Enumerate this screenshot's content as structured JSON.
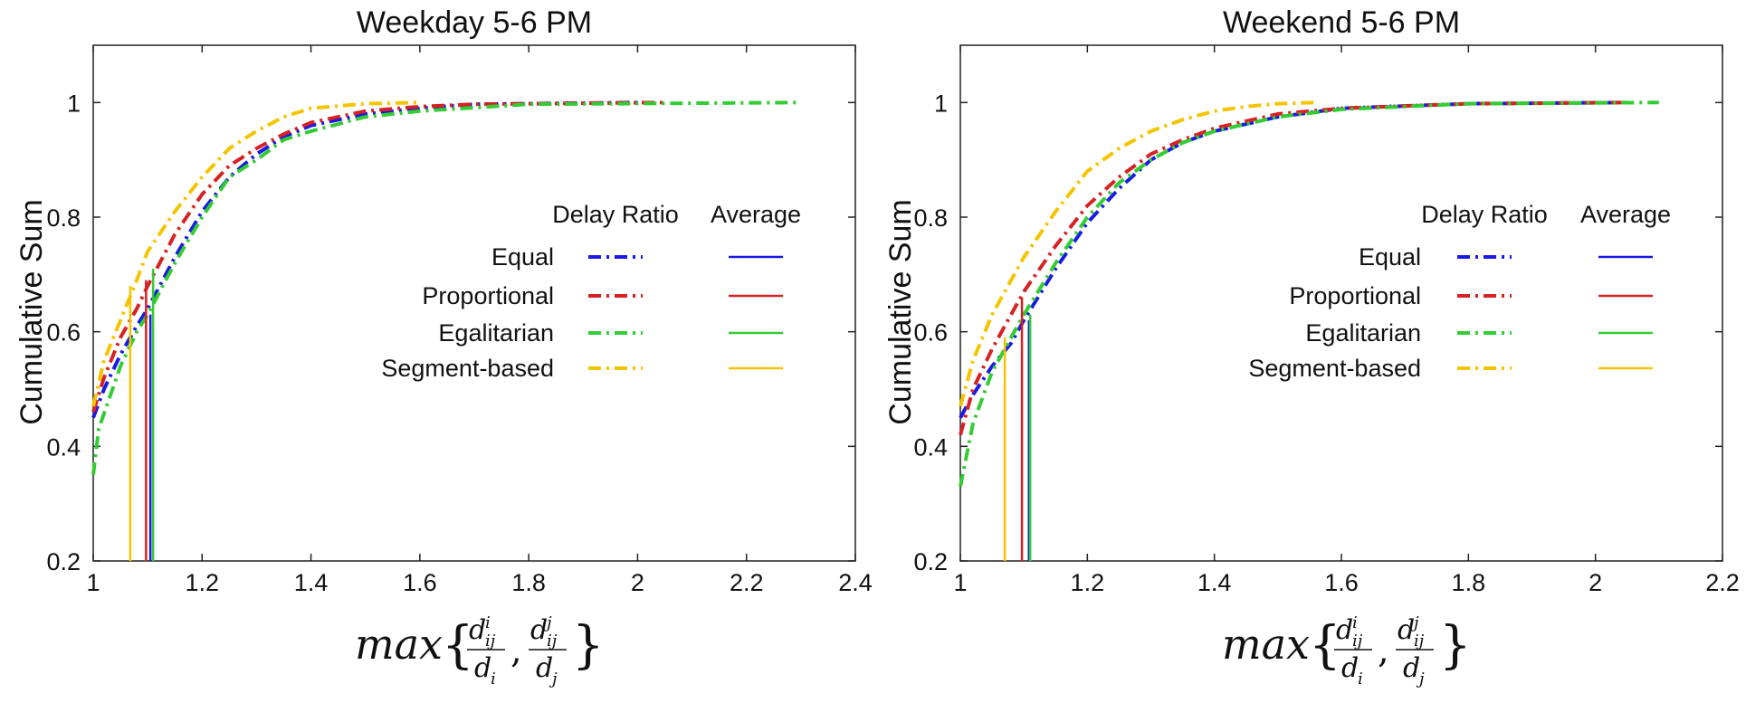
{
  "colors": {
    "Equal": "#1a1ae6",
    "Proportional": "#d62222",
    "Egalitarian": "#33cc33",
    "Segment-based": "#f5c400"
  },
  "legend": {
    "col1_header": "Delay Ratio",
    "col2_header": "Average",
    "entries": [
      "Equal",
      "Proportional",
      "Egalitarian",
      "Segment-based"
    ]
  },
  "xlabel_parts": {
    "func": "max",
    "num_i": "d",
    "sup_i": "i",
    "sub_ij": "ij",
    "den_i": "d",
    "den_sub_i": "i",
    "sup_j": "j",
    "den_sub_j": "j"
  },
  "chart_data": [
    {
      "type": "line",
      "title": "Weekday 5-6 PM",
      "ylabel": "Cumulative Sum",
      "xlabel": "max{d_ij^i/d_i, d_ij^j/d_j}",
      "xlim": [
        1,
        2.4
      ],
      "ylim": [
        0.2,
        1.1
      ],
      "xticks": [
        "1",
        "1.2",
        "1.4",
        "1.6",
        "1.8",
        "2",
        "2.2",
        "2.4"
      ],
      "yticks": [
        "0.2",
        "0.4",
        "0.6",
        "0.8",
        "1"
      ],
      "legend_position": "center-right",
      "series": [
        {
          "name": "Equal",
          "style": "dash-dot",
          "x": [
            1.0,
            1.02,
            1.05,
            1.08,
            1.1,
            1.15,
            1.2,
            1.25,
            1.3,
            1.35,
            1.4,
            1.5,
            1.6,
            1.7,
            2.0
          ],
          "y": [
            0.45,
            0.5,
            0.56,
            0.61,
            0.64,
            0.73,
            0.81,
            0.87,
            0.91,
            0.94,
            0.96,
            0.98,
            0.99,
            0.997,
            1.0
          ]
        },
        {
          "name": "Proportional",
          "style": "dash-dot",
          "x": [
            1.0,
            1.02,
            1.05,
            1.08,
            1.1,
            1.15,
            1.2,
            1.25,
            1.3,
            1.35,
            1.4,
            1.5,
            1.6,
            1.7,
            2.05
          ],
          "y": [
            0.46,
            0.52,
            0.59,
            0.64,
            0.68,
            0.77,
            0.84,
            0.89,
            0.92,
            0.945,
            0.965,
            0.985,
            0.993,
            0.997,
            1.0
          ]
        },
        {
          "name": "Egalitarian",
          "style": "dash-dot",
          "x": [
            1.0,
            1.01,
            1.05,
            1.08,
            1.1,
            1.15,
            1.2,
            1.25,
            1.3,
            1.35,
            1.4,
            1.5,
            1.6,
            1.8,
            2.3
          ],
          "y": [
            0.35,
            0.43,
            0.54,
            0.6,
            0.63,
            0.72,
            0.8,
            0.87,
            0.9,
            0.935,
            0.95,
            0.975,
            0.985,
            0.997,
            1.0
          ]
        },
        {
          "name": "Segment-based",
          "style": "dash-dot",
          "x": [
            1.0,
            1.02,
            1.05,
            1.08,
            1.1,
            1.15,
            1.2,
            1.25,
            1.3,
            1.35,
            1.4,
            1.5,
            1.6
          ],
          "y": [
            0.47,
            0.55,
            0.62,
            0.69,
            0.74,
            0.81,
            0.87,
            0.92,
            0.95,
            0.975,
            0.99,
            0.998,
            1.0
          ]
        }
      ],
      "averages": [
        {
          "name": "Equal",
          "x": 1.105,
          "y": 0.63
        },
        {
          "name": "Proportional",
          "x": 1.097,
          "y": 0.69
        },
        {
          "name": "Egalitarian",
          "x": 1.11,
          "y": 0.71
        },
        {
          "name": "Segment-based",
          "x": 1.068,
          "y": 0.68
        }
      ]
    },
    {
      "type": "line",
      "title": "Weekend 5-6 PM",
      "ylabel": "Cumulative Sum",
      "xlabel": "max{d_ij^i/d_i, d_ij^j/d_j}",
      "xlim": [
        1,
        2.2
      ],
      "ylim": [
        0.2,
        1.1
      ],
      "xticks": [
        "1",
        "1.2",
        "1.4",
        "1.6",
        "1.8",
        "2",
        "2.2"
      ],
      "yticks": [
        "0.2",
        "0.4",
        "0.6",
        "0.8",
        "1"
      ],
      "legend_position": "center-right",
      "series": [
        {
          "name": "Equal",
          "style": "dash-dot",
          "x": [
            1.0,
            1.02,
            1.05,
            1.08,
            1.1,
            1.15,
            1.2,
            1.25,
            1.3,
            1.35,
            1.4,
            1.5,
            1.6,
            1.8,
            2.05
          ],
          "y": [
            0.45,
            0.49,
            0.54,
            0.58,
            0.62,
            0.71,
            0.79,
            0.85,
            0.9,
            0.93,
            0.95,
            0.975,
            0.99,
            0.998,
            1.0
          ]
        },
        {
          "name": "Proportional",
          "style": "dash-dot",
          "x": [
            1.0,
            1.02,
            1.05,
            1.08,
            1.1,
            1.15,
            1.2,
            1.25,
            1.3,
            1.35,
            1.4,
            1.5,
            1.6,
            1.8,
            2.05
          ],
          "y": [
            0.42,
            0.5,
            0.57,
            0.63,
            0.67,
            0.75,
            0.82,
            0.87,
            0.91,
            0.935,
            0.955,
            0.98,
            0.99,
            0.998,
            1.0
          ]
        },
        {
          "name": "Egalitarian",
          "style": "dash-dot",
          "x": [
            1.0,
            1.02,
            1.05,
            1.08,
            1.1,
            1.15,
            1.2,
            1.25,
            1.3,
            1.35,
            1.4,
            1.5,
            1.6,
            1.8,
            2.1
          ],
          "y": [
            0.33,
            0.44,
            0.53,
            0.59,
            0.63,
            0.72,
            0.8,
            0.86,
            0.9,
            0.93,
            0.95,
            0.975,
            0.988,
            0.998,
            1.0
          ]
        },
        {
          "name": "Segment-based",
          "style": "dash-dot",
          "x": [
            1.0,
            1.02,
            1.05,
            1.08,
            1.1,
            1.15,
            1.2,
            1.25,
            1.3,
            1.35,
            1.4,
            1.45,
            1.5,
            1.56
          ],
          "y": [
            0.47,
            0.55,
            0.63,
            0.69,
            0.73,
            0.81,
            0.88,
            0.92,
            0.95,
            0.97,
            0.985,
            0.993,
            0.998,
            1.0
          ]
        }
      ],
      "averages": [
        {
          "name": "Equal",
          "x": 1.108,
          "y": 0.62
        },
        {
          "name": "Proportional",
          "x": 1.097,
          "y": 0.66
        },
        {
          "name": "Egalitarian",
          "x": 1.11,
          "y": 0.63
        },
        {
          "name": "Segment-based",
          "x": 1.07,
          "y": 0.59
        }
      ]
    }
  ]
}
